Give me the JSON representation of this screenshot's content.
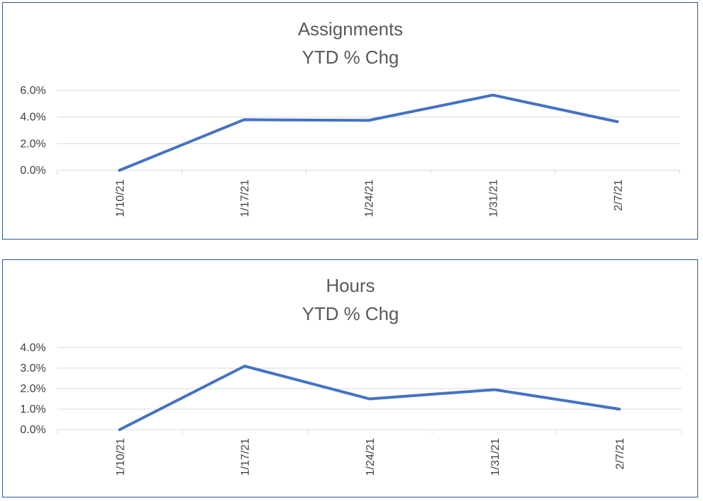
{
  "colors": {
    "series": "#4472c4",
    "border": "#2f5597"
  },
  "chart_data": [
    {
      "type": "line",
      "title_lines": [
        "Assignments",
        "YTD % Chg"
      ],
      "categories": [
        "1/10/21",
        "1/17/21",
        "1/24/21",
        "1/31/21",
        "2/7/21"
      ],
      "series": [
        {
          "values": [
            0.0,
            3.8,
            3.75,
            5.65,
            3.65
          ]
        }
      ],
      "yticks": [
        "0.0%",
        "2.0%",
        "4.0%",
        "6.0%"
      ],
      "ylim": [
        0,
        6
      ],
      "grid": true,
      "legend": "none"
    },
    {
      "type": "line",
      "title_lines": [
        "Hours",
        "YTD % Chg"
      ],
      "categories": [
        "1/10/21",
        "1/17/21",
        "1/24/21",
        "1/31/21",
        "2/7/21"
      ],
      "series": [
        {
          "values": [
            0.0,
            3.1,
            1.5,
            1.95,
            1.0
          ]
        }
      ],
      "yticks": [
        "0.0%",
        "1.0%",
        "2.0%",
        "3.0%",
        "4.0%"
      ],
      "ylim": [
        0,
        4
      ],
      "grid": true,
      "legend": "none"
    }
  ]
}
